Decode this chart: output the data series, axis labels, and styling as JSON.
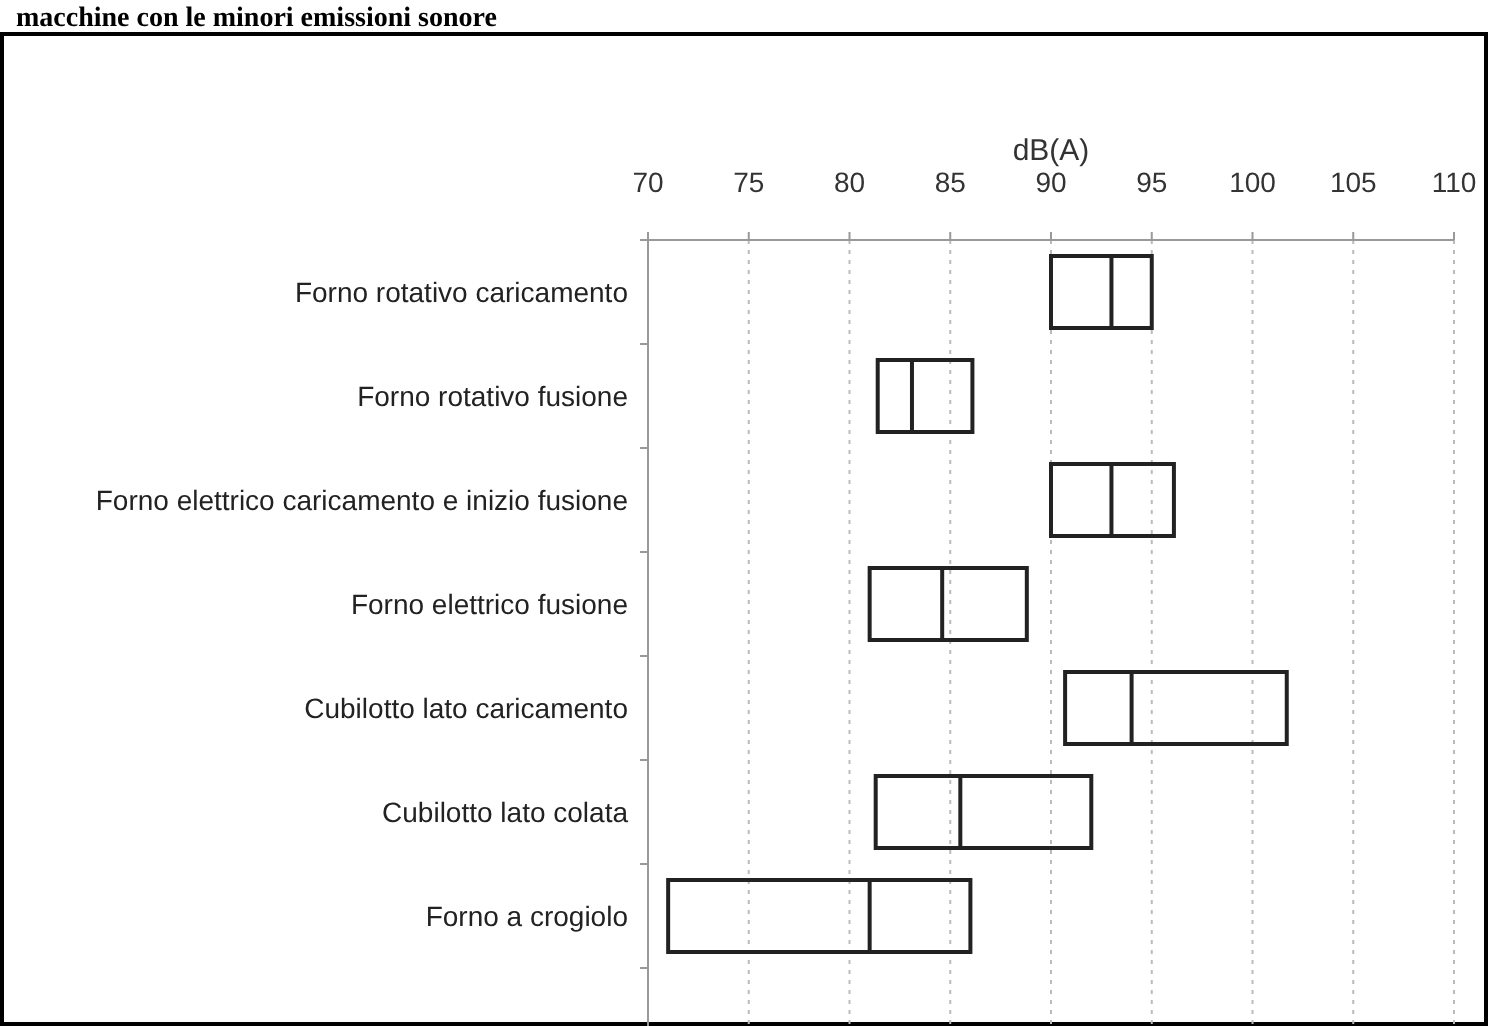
{
  "chart_data": {
    "type": "box",
    "orientation": "horizontal",
    "title": "macchine con le minori emissioni sonore",
    "xlabel": "dB(A)",
    "categories": [
      "Forno rotativo caricamento",
      "Forno rotativo fusione",
      "Forno elettrico caricamento e inizio fusione",
      "Forno elettrico fusione",
      "Cubilotto lato caricamento",
      "Cubilotto lato colata",
      "Forno a crogiolo"
    ],
    "boxes": [
      {
        "low": 90,
        "q1": 90,
        "median": 93,
        "q3": 95,
        "high": 95
      },
      {
        "low": 81.4,
        "q1": 81.4,
        "median": 83.1,
        "q3": 86.1,
        "high": 86.1
      },
      {
        "low": 90,
        "q1": 90,
        "median": 93,
        "q3": 96.1,
        "high": 96.1
      },
      {
        "low": 81,
        "q1": 81,
        "median": 84.6,
        "q3": 88.8,
        "high": 88.8
      },
      {
        "low": 90.7,
        "q1": 90.7,
        "median": 94,
        "q3": 101.7,
        "high": 101.7
      },
      {
        "low": 81.3,
        "q1": 81.3,
        "median": 85.5,
        "q3": 92,
        "high": 92
      },
      {
        "low": 71,
        "q1": 71,
        "median": 81,
        "q3": 86,
        "high": 86
      }
    ],
    "xlim": [
      70,
      110
    ],
    "xticks": [
      70,
      75,
      80,
      85,
      90,
      95,
      100,
      105,
      110
    ],
    "grid": "x",
    "color": "#222222"
  }
}
